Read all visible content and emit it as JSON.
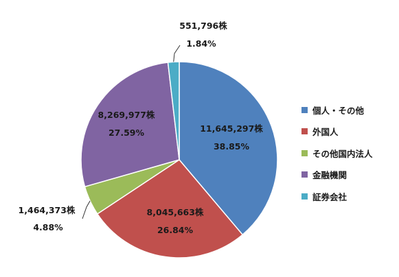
{
  "chart_data": {
    "type": "pie",
    "title": "",
    "legend_position": "right",
    "start_angle": "top",
    "direction": "clockwise",
    "slices": [
      {
        "name": "個人・その他",
        "value": 11645297,
        "percent": 38.85,
        "value_label": "11,645,297株",
        "percent_label": "38.85%",
        "color": "#4F81BD"
      },
      {
        "name": "外国人",
        "value": 8045663,
        "percent": 26.84,
        "value_label": "8,045,663株",
        "percent_label": "26.84%",
        "color": "#C0504D"
      },
      {
        "name": "その他国内法人",
        "value": 1464373,
        "percent": 4.88,
        "value_label": "1,464,373株",
        "percent_label": "4.88%",
        "color": "#9BBB59"
      },
      {
        "name": "金融機関",
        "value": 8269977,
        "percent": 27.59,
        "value_label": "8,269,977株",
        "percent_label": "27.59%",
        "color": "#8064A2"
      },
      {
        "name": "証券会社",
        "value": 551796,
        "percent": 1.84,
        "value_label": "551,796株",
        "percent_label": "1.84%",
        "color": "#4BACC6"
      }
    ]
  }
}
